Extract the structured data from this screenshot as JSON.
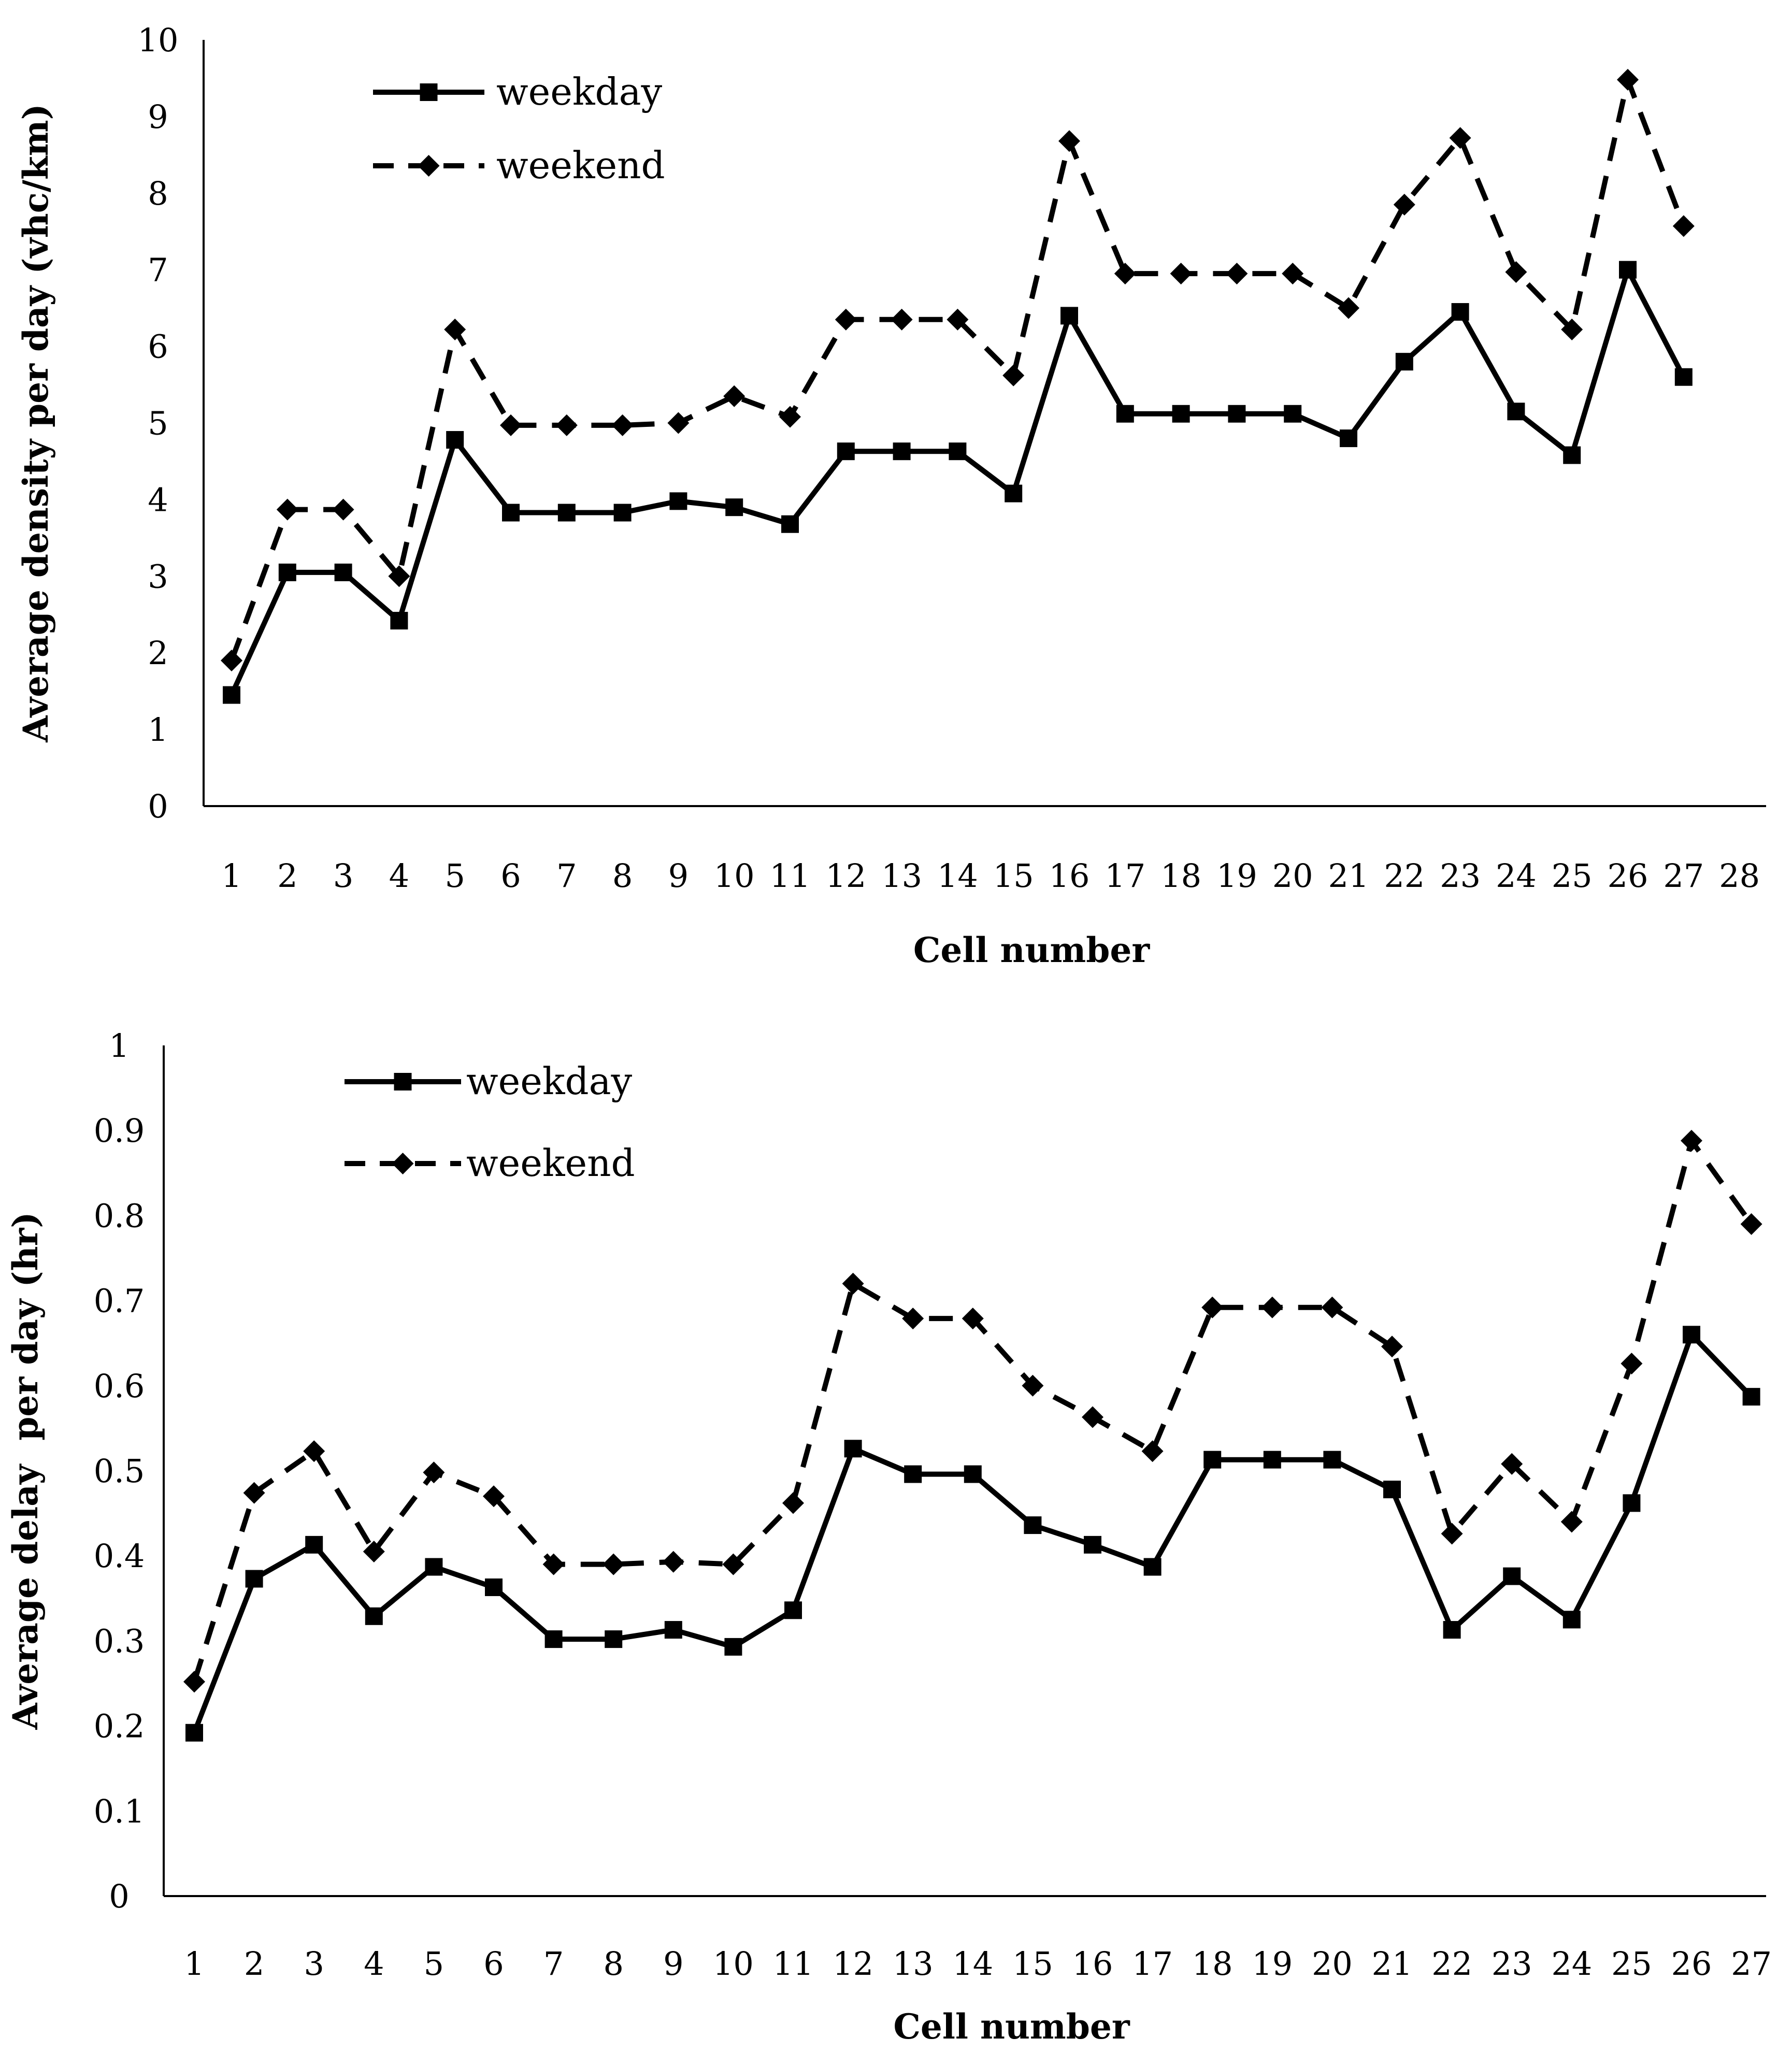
{
  "chart_data": [
    {
      "type": "line",
      "xlabel": "Cell number",
      "ylabel": "Average density per day (vhc/km)",
      "ylim": [
        0,
        10
      ],
      "yticks": [
        0,
        1,
        2,
        3,
        4,
        5,
        6,
        7,
        8,
        9,
        10
      ],
      "x_tick_labels": [
        "1",
        "2",
        "3",
        "4",
        "5",
        "6",
        "7",
        "8",
        "9",
        "10",
        "11",
        "12",
        "13",
        "14",
        "15",
        "16",
        "17",
        "18",
        "19",
        "20",
        "21",
        "22",
        "23",
        "24",
        "25",
        "26",
        "27",
        "28"
      ],
      "x": [
        1,
        2,
        3,
        4,
        5,
        6,
        7,
        8,
        9,
        10,
        11,
        12,
        13,
        14,
        15,
        16,
        17,
        18,
        19,
        20,
        21,
        22,
        23,
        24,
        25,
        26,
        27
      ],
      "grid": false,
      "legend_position": "top-left",
      "series": [
        {
          "name": "weekday",
          "style": "solid",
          "marker": "square",
          "color": "#000000",
          "values": [
            1.45,
            3.05,
            3.05,
            2.42,
            4.78,
            3.83,
            3.83,
            3.83,
            3.98,
            3.9,
            3.68,
            4.63,
            4.63,
            4.63,
            4.08,
            6.4,
            5.12,
            5.12,
            5.12,
            5.12,
            4.8,
            5.8,
            6.45,
            5.15,
            4.58,
            7.0,
            5.6
          ]
        },
        {
          "name": "weekend",
          "style": "dashed",
          "marker": "diamond",
          "color": "#000000",
          "values": [
            1.9,
            3.87,
            3.87,
            3.0,
            6.22,
            4.97,
            4.97,
            4.97,
            5.0,
            5.35,
            5.08,
            6.35,
            6.35,
            6.35,
            5.62,
            8.68,
            6.95,
            6.95,
            6.95,
            6.95,
            6.5,
            7.85,
            8.72,
            6.97,
            6.22,
            9.48,
            7.57
          ]
        }
      ]
    },
    {
      "type": "line",
      "xlabel": "Cell number",
      "ylabel": "Average delay  per day (hr)",
      "ylim": [
        0,
        1
      ],
      "yticks": [
        "0",
        "0.1",
        "0.2",
        "0.3",
        "0.4",
        "0.5",
        "0.6",
        "0.7",
        "0.8",
        "0.9",
        "1"
      ],
      "x_tick_labels": [
        "1",
        "2",
        "3",
        "4",
        "5",
        "6",
        "7",
        "8",
        "9",
        "10",
        "11",
        "12",
        "13",
        "14",
        "15",
        "16",
        "17",
        "18",
        "19",
        "20",
        "21",
        "22",
        "23",
        "24",
        "25",
        "26",
        "27"
      ],
      "x": [
        1,
        2,
        3,
        4,
        5,
        6,
        7,
        8,
        9,
        10,
        11,
        12,
        13,
        14,
        15,
        16,
        17,
        18,
        19,
        20,
        21,
        22,
        23,
        24,
        25,
        26,
        27
      ],
      "grid": false,
      "legend_position": "top-left",
      "series": [
        {
          "name": "weekday",
          "style": "solid",
          "marker": "square",
          "color": "#000000",
          "values": [
            0.192,
            0.373,
            0.413,
            0.329,
            0.387,
            0.363,
            0.302,
            0.302,
            0.313,
            0.293,
            0.336,
            0.526,
            0.496,
            0.496,
            0.436,
            0.413,
            0.387,
            0.513,
            0.513,
            0.513,
            0.478,
            0.313,
            0.376,
            0.325,
            0.462,
            0.66,
            0.587
          ]
        },
        {
          "name": "weekend",
          "style": "dashed",
          "marker": "diamond",
          "color": "#000000",
          "values": [
            0.252,
            0.474,
            0.523,
            0.405,
            0.498,
            0.47,
            0.39,
            0.39,
            0.393,
            0.39,
            0.462,
            0.72,
            0.679,
            0.679,
            0.6,
            0.563,
            0.523,
            0.692,
            0.692,
            0.692,
            0.646,
            0.426,
            0.508,
            0.44,
            0.626,
            0.888,
            0.79
          ]
        }
      ]
    }
  ]
}
